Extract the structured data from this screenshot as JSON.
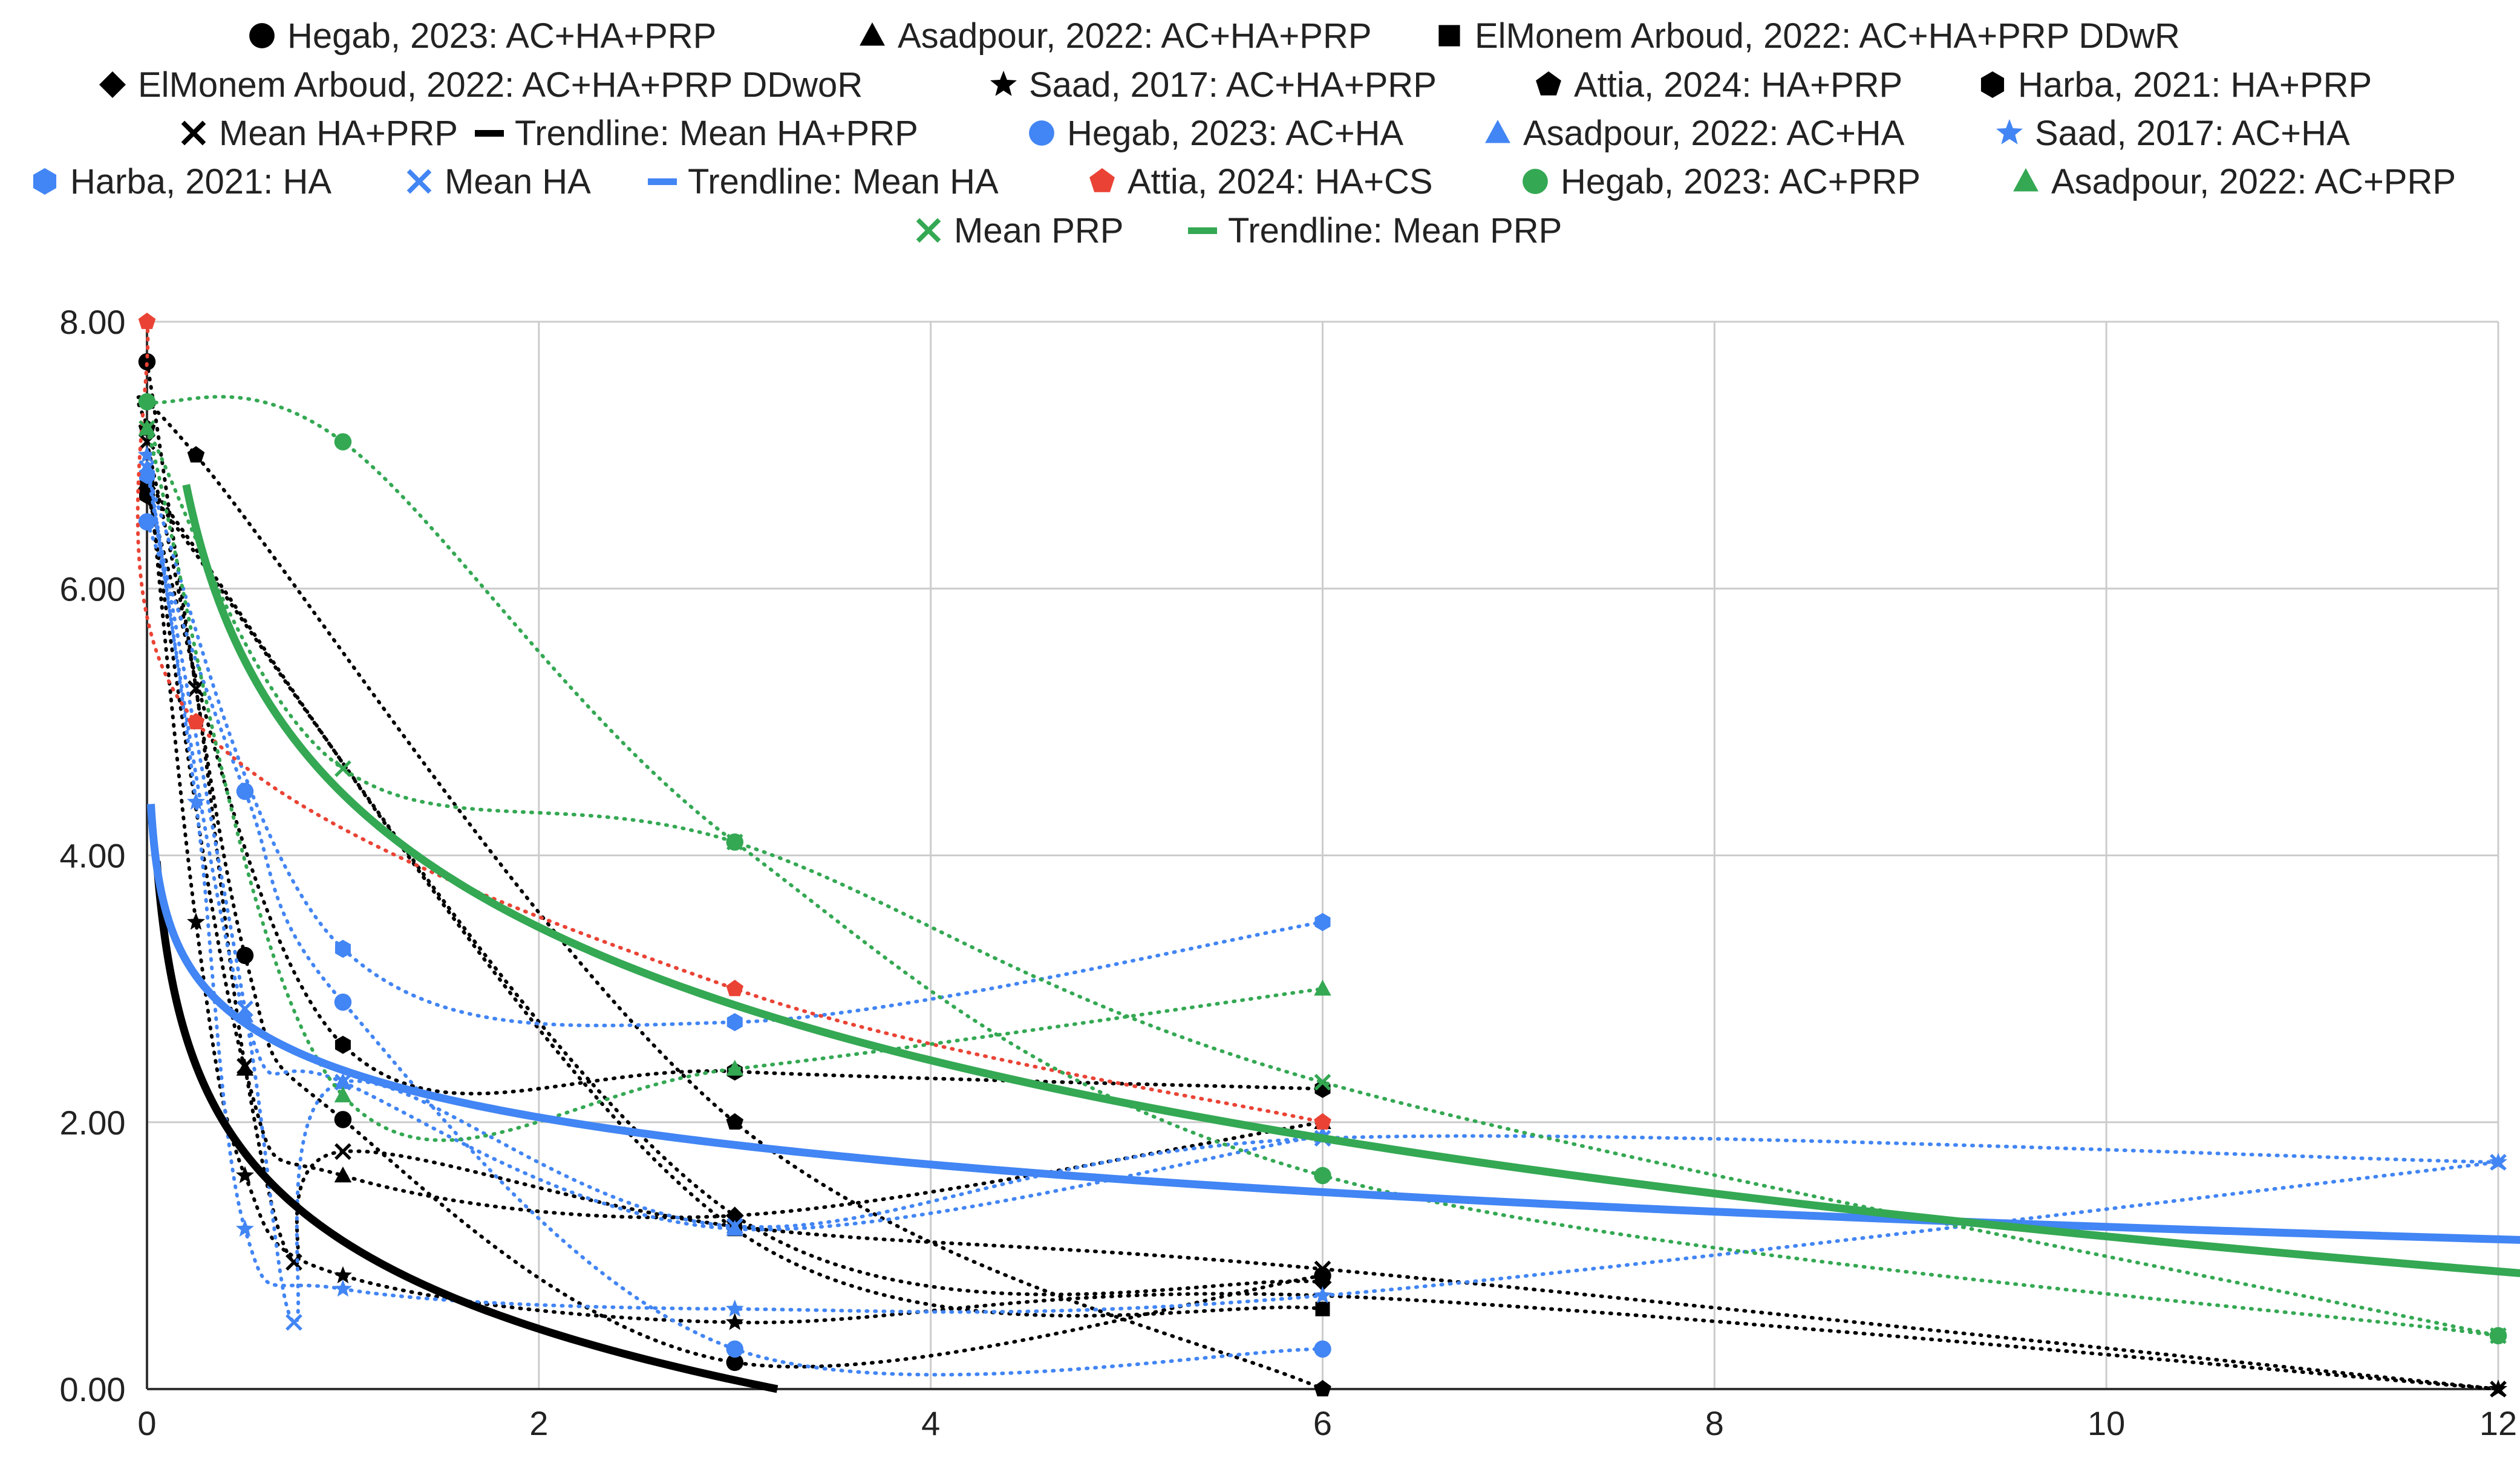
{
  "chart_data": {
    "type": "line",
    "title": "",
    "xlabel": "",
    "ylabel": "",
    "xlim": [
      0,
      12
    ],
    "ylim": [
      0,
      8
    ],
    "xticks": [
      "0",
      "2",
      "4",
      "6",
      "8",
      "10",
      "12"
    ],
    "yticks": [
      "0.00",
      "2.00",
      "4.00",
      "6.00",
      "8.00"
    ],
    "grid": true,
    "legend_position": "top",
    "colors": {
      "black": "#000000",
      "blue": "#4285f4",
      "red": "#ea4335",
      "green": "#34a853",
      "grid": "#cccccc"
    },
    "series": [
      {
        "name": "Hegab, 2023: AC+HA+PRP",
        "color": "#000000",
        "marker": "circle",
        "line": "dotted",
        "points": [
          [
            0,
            7.7
          ],
          [
            0.5,
            3.25
          ],
          [
            1,
            2.02
          ],
          [
            3,
            0.2
          ],
          [
            6,
            0.85
          ]
        ]
      },
      {
        "name": "Asadpour, 2022: AC+HA+PRP",
        "color": "#000000",
        "marker": "triangle",
        "line": "dotted",
        "points": [
          [
            0,
            6.8
          ],
          [
            0.5,
            2.4
          ],
          [
            1,
            1.6
          ],
          [
            3,
            1.3
          ],
          [
            6,
            2.0
          ]
        ]
      },
      {
        "name": "ElMonem Arboud, 2022: AC+HA+PRP DDwR",
        "color": "#000000",
        "marker": "square",
        "line": "dotted",
        "points": [
          [
            0,
            6.8
          ],
          [
            3,
            1.2
          ],
          [
            6,
            0.6
          ]
        ]
      },
      {
        "name": "ElMonem Arboud, 2022: AC+HA+PRP DDwoR",
        "color": "#000000",
        "marker": "diamond",
        "line": "dotted",
        "points": [
          [
            0,
            6.75
          ],
          [
            3,
            1.3
          ],
          [
            6,
            0.8
          ]
        ]
      },
      {
        "name": "Saad, 2017: AC+HA+PRP",
        "color": "#000000",
        "marker": "star",
        "line": "dotted",
        "points": [
          [
            0,
            7.0
          ],
          [
            0.25,
            3.5
          ],
          [
            0.5,
            1.6
          ],
          [
            1,
            0.85
          ],
          [
            3,
            0.5
          ],
          [
            6,
            0.7
          ],
          [
            12,
            0.0
          ]
        ]
      },
      {
        "name": "Attia, 2024: HA+PRP",
        "color": "#000000",
        "marker": "pentagon",
        "line": "dotted",
        "points": [
          [
            0,
            7.2
          ],
          [
            0.25,
            7.0
          ],
          [
            3,
            2.0
          ],
          [
            6,
            0.0
          ]
        ]
      },
      {
        "name": "Harba, 2021: HA+PRP",
        "color": "#000000",
        "marker": "hexagon",
        "line": "dotted",
        "points": [
          [
            0,
            6.7
          ],
          [
            1,
            2.58
          ],
          [
            3,
            2.38
          ],
          [
            6,
            2.25
          ]
        ]
      },
      {
        "name": "Mean HA+PRP",
        "color": "#000000",
        "marker": "x",
        "line": "dotted",
        "points": [
          [
            0,
            7.1
          ],
          [
            0.25,
            5.25
          ],
          [
            0.5,
            2.42
          ],
          [
            0.75,
            0.95
          ],
          [
            1,
            1.78
          ],
          [
            3,
            1.22
          ],
          [
            6,
            0.9
          ],
          [
            12,
            0.0
          ]
        ]
      },
      {
        "name": "Trendline: Mean HA+PRP",
        "color": "#000000",
        "marker": "none",
        "line": "solid",
        "trend": {
          "a": 1.11,
          "b": 0.95,
          "xmin": 0.05
        }
      },
      {
        "name": "Hegab, 2023: AC+HA",
        "color": "#4285f4",
        "marker": "circle",
        "line": "dotted",
        "points": [
          [
            0,
            6.5
          ],
          [
            0.5,
            4.48
          ],
          [
            1,
            2.9
          ],
          [
            3,
            0.3
          ],
          [
            6,
            0.3
          ]
        ]
      },
      {
        "name": "Asadpour, 2022: AC+HA",
        "color": "#4285f4",
        "marker": "triangle",
        "line": "dotted",
        "points": [
          [
            0,
            6.9
          ],
          [
            0.5,
            2.8
          ],
          [
            1,
            2.3
          ],
          [
            3,
            1.2
          ],
          [
            6,
            1.9
          ]
        ]
      },
      {
        "name": "Saad, 2017: AC+HA",
        "color": "#4285f4",
        "marker": "star",
        "line": "dotted",
        "points": [
          [
            0,
            7.0
          ],
          [
            0.25,
            4.4
          ],
          [
            0.5,
            1.2
          ],
          [
            1,
            0.75
          ],
          [
            3,
            0.6
          ],
          [
            6,
            0.7
          ],
          [
            12,
            1.7
          ]
        ]
      },
      {
        "name": "Harba, 2021: HA",
        "color": "#4285f4",
        "marker": "hexagon",
        "line": "dotted",
        "points": [
          [
            0,
            6.85
          ],
          [
            1,
            3.3
          ],
          [
            3,
            2.75
          ],
          [
            6,
            3.5
          ]
        ]
      },
      {
        "name": "Mean HA",
        "color": "#4285f4",
        "marker": "x",
        "line": "dotted",
        "points": [
          [
            0,
            6.9
          ],
          [
            0.5,
            2.85
          ],
          [
            0.75,
            0.5
          ],
          [
            1,
            2.3
          ],
          [
            3,
            1.22
          ],
          [
            6,
            1.88
          ],
          [
            12,
            1.7
          ]
        ]
      },
      {
        "name": "Trendline: Mean HA",
        "color": "#4285f4",
        "marker": "none",
        "line": "solid",
        "trend": {
          "a": 2.39,
          "b": 0.51,
          "xmin": 0.02
        }
      },
      {
        "name": "Attia, 2024: HA+CS",
        "color": "#ea4335",
        "marker": "pentagon",
        "line": "dotted",
        "points": [
          [
            0,
            8.0
          ],
          [
            0.25,
            5.0
          ],
          [
            3,
            3.0
          ],
          [
            6,
            2.0
          ]
        ]
      },
      {
        "name": "Hegab, 2023: AC+PRP",
        "color": "#34a853",
        "marker": "circle",
        "line": "dotted",
        "points": [
          [
            0,
            7.4
          ],
          [
            1,
            7.1
          ],
          [
            3,
            4.1
          ],
          [
            6,
            1.6
          ],
          [
            12,
            0.4
          ]
        ]
      },
      {
        "name": "Asadpour, 2022: AC+PRP",
        "color": "#34a853",
        "marker": "triangle",
        "line": "dotted",
        "points": [
          [
            0,
            7.2
          ],
          [
            1,
            2.2
          ],
          [
            3,
            2.4
          ],
          [
            6,
            3.0
          ]
        ]
      },
      {
        "name": "Mean PRP",
        "color": "#34a853",
        "marker": "x",
        "line": "dotted",
        "points": [
          [
            0,
            7.2
          ],
          [
            1,
            4.65
          ],
          [
            3,
            4.1
          ],
          [
            6,
            2.3
          ],
          [
            12,
            0.4
          ]
        ]
      },
      {
        "name": "Trendline: Mean PRP",
        "color": "#34a853",
        "marker": "none",
        "line": "solid",
        "trend": {
          "a": 4.46,
          "b": 1.44,
          "xmin": 0.2
        }
      }
    ]
  }
}
